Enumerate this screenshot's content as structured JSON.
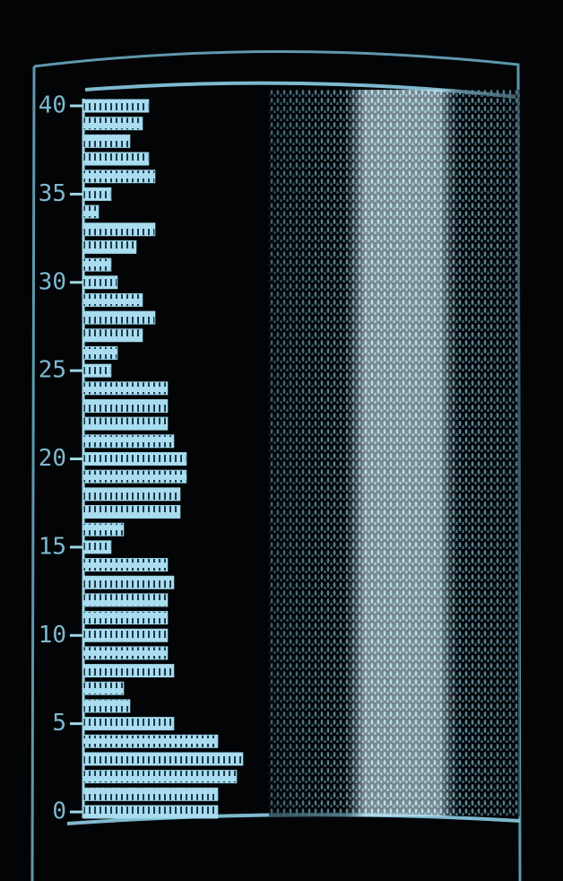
{
  "chart_data": {
    "type": "hbar",
    "y": [
      0,
      1,
      2,
      3,
      4,
      5,
      6,
      7,
      8,
      9,
      10,
      11,
      12,
      13,
      14,
      15,
      16,
      17,
      18,
      19,
      20,
      21,
      22,
      23,
      24,
      25,
      26,
      27,
      28,
      29,
      30,
      31,
      32,
      33,
      34,
      35,
      36,
      37,
      38,
      39,
      40
    ],
    "values": [
      107,
      107,
      122,
      127,
      107,
      72,
      37,
      32,
      72,
      67,
      67,
      67,
      67,
      72,
      67,
      22,
      32,
      77,
      77,
      82,
      82,
      72,
      67,
      67,
      67,
      22,
      27,
      47,
      57,
      47,
      27,
      22,
      42,
      57,
      12,
      22,
      57,
      52,
      37,
      47,
      52
    ],
    "color": "#9fd6ea",
    "xlim": [
      0,
      140
    ],
    "ylim": [
      0,
      40
    ],
    "yticks": [
      0,
      5,
      10,
      15,
      20,
      25,
      30,
      35,
      40
    ]
  }
}
